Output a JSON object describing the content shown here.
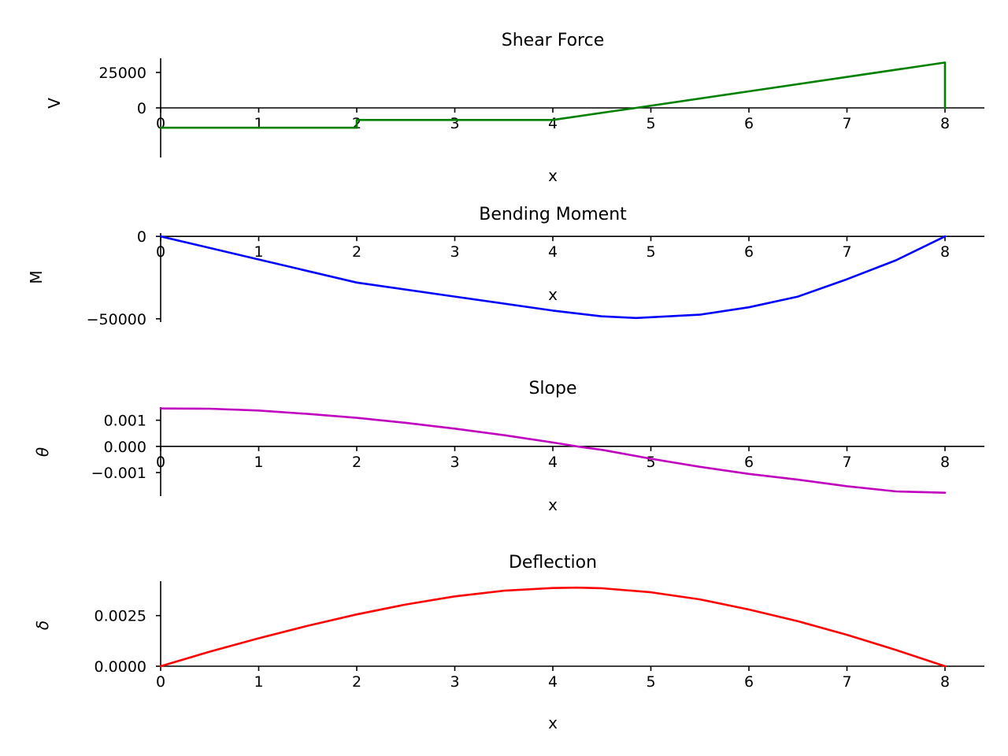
{
  "chart_data": [
    {
      "type": "line",
      "title": "Shear Force",
      "xlabel": "x",
      "ylabel": "V",
      "color": "#008000",
      "xlim": [
        0,
        8
      ],
      "ylim": [
        -35000,
        35000
      ],
      "x_ticks": [
        0,
        1,
        2,
        3,
        4,
        5,
        6,
        7,
        8
      ],
      "y_ticks": [
        0,
        25000
      ],
      "y_tick_labels": [
        "0",
        "25000"
      ],
      "grid": false,
      "x": [
        0,
        2,
        2,
        4,
        4.85,
        8,
        8
      ],
      "y": [
        -14000,
        -14000,
        -8500,
        -8500,
        0,
        32000,
        0
      ]
    },
    {
      "type": "line",
      "title": "Bending Moment",
      "xlabel": "x",
      "ylabel": "M",
      "color": "#0000ff",
      "xlim": [
        0,
        8
      ],
      "ylim": [
        -52000,
        2000
      ],
      "x_ticks": [
        0,
        1,
        2,
        3,
        4,
        5,
        6,
        7,
        8
      ],
      "y_ticks": [
        0,
        -50000
      ],
      "y_tick_labels": [
        "0",
        "−50000"
      ],
      "grid": false,
      "x": [
        0,
        1,
        2,
        3,
        4,
        4.5,
        4.85,
        5.5,
        6,
        6.5,
        7,
        7.5,
        8
      ],
      "y": [
        0,
        -14000,
        -28000,
        -36500,
        -45000,
        -48500,
        -49500,
        -47500,
        -43000,
        -36500,
        -26000,
        -14500,
        0
      ]
    },
    {
      "type": "line",
      "title": "Slope",
      "xlabel": "x",
      "ylabel": "θ",
      "color": "#bf00bf",
      "xlim": [
        0,
        8
      ],
      "ylim": [
        -0.0019,
        0.0015
      ],
      "x_ticks": [
        0,
        1,
        2,
        3,
        4,
        5,
        6,
        7,
        8
      ],
      "y_ticks": [
        0.001,
        0,
        -0.001
      ],
      "y_tick_labels": [
        "0.001",
        "0.000",
        "−0.001"
      ],
      "grid": false,
      "x": [
        0,
        0.5,
        1,
        1.5,
        2,
        2.5,
        3,
        3.5,
        4,
        4.25,
        4.5,
        5,
        5.5,
        6,
        6.5,
        7,
        7.5,
        8
      ],
      "y": [
        0.00145,
        0.00144,
        0.00137,
        0.00124,
        0.00109,
        0.0009,
        0.00068,
        0.00043,
        0.00015,
        0,
        -0.00013,
        -0.00047,
        -0.00078,
        -0.00105,
        -0.00127,
        -0.00152,
        -0.00172,
        -0.00177
      ]
    },
    {
      "type": "line",
      "title": "Deflection",
      "xlabel": "x",
      "ylabel": "δ",
      "color": "#ff0000",
      "xlim": [
        0,
        8
      ],
      "ylim": [
        0,
        0.0042
      ],
      "x_ticks": [
        0,
        1,
        2,
        3,
        4,
        5,
        6,
        7,
        8
      ],
      "y_ticks": [
        0.0025,
        0
      ],
      "y_tick_labels": [
        "0.0025",
        "0.0000"
      ],
      "grid": false,
      "x": [
        0,
        0.5,
        1,
        1.5,
        2,
        2.5,
        3,
        3.5,
        4,
        4.25,
        4.5,
        5,
        5.5,
        6,
        6.5,
        7,
        7.5,
        8
      ],
      "y": [
        0,
        0.00072,
        0.00138,
        0.002,
        0.00256,
        0.00305,
        0.00345,
        0.00373,
        0.00386,
        0.00388,
        0.00385,
        0.00365,
        0.0033,
        0.0028,
        0.00222,
        0.00155,
        0.0008,
        0
      ]
    }
  ]
}
